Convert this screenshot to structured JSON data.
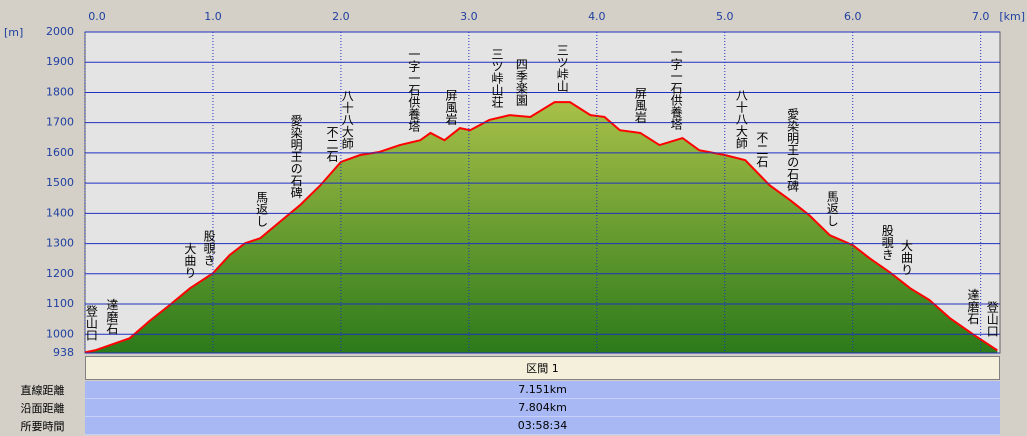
{
  "chart_data": {
    "type": "area",
    "x_label": "[km]",
    "y_label": "[m]",
    "x": [
      0,
      0.08,
      0.35,
      0.51,
      0.66,
      0.82,
      1.0,
      1.13,
      1.25,
      1.37,
      1.52,
      1.68,
      1.84,
      2.0,
      2.15,
      2.3,
      2.46,
      2.62,
      2.7,
      2.81,
      2.93,
      3.01,
      3.16,
      3.32,
      3.48,
      3.67,
      3.79,
      3.95,
      4.06,
      4.18,
      4.34,
      4.49,
      4.67,
      4.8,
      5.0,
      5.16,
      5.35,
      5.51,
      5.66,
      5.82,
      6.0,
      6.13,
      6.29,
      6.45,
      6.6,
      6.76,
      6.95,
      7.13
    ],
    "series": [
      {
        "color": "#ff0000",
        "values": [
          940,
          947,
          987,
          1046,
          1096,
          1152,
          1202,
          1262,
          1301,
          1318,
          1371,
          1427,
          1493,
          1570,
          1593,
          1603,
          1626,
          1642,
          1666,
          1642,
          1682,
          1675,
          1709,
          1725,
          1719,
          1768,
          1768,
          1725,
          1719,
          1675,
          1666,
          1626,
          1649,
          1609,
          1593,
          1576,
          1493,
          1444,
          1394,
          1328,
          1295,
          1252,
          1205,
          1152,
          1113,
          1053,
          997,
          947
        ]
      }
    ],
    "xlim": [
      0,
      7.151
    ],
    "ylim": [
      938,
      2000
    ],
    "xticks": [
      {
        "value": 0,
        "label": "0.0"
      },
      {
        "value": 1,
        "label": "1.0"
      },
      {
        "value": 2,
        "label": "2.0"
      },
      {
        "value": 3,
        "label": "3.0"
      },
      {
        "value": 4,
        "label": "4.0"
      },
      {
        "value": 5,
        "label": "5.0"
      },
      {
        "value": 6,
        "label": "6.0"
      },
      {
        "value": 7,
        "label": "7.0"
      }
    ],
    "yticks": [
      938,
      1000,
      1100,
      1200,
      1300,
      1400,
      1500,
      1600,
      1700,
      1800,
      1900,
      2000
    ],
    "grid": true,
    "annotations": [
      {
        "text": "登山口",
        "x": 0.05
      },
      {
        "text": "達磨石",
        "x": 0.21
      },
      {
        "text": "大曲り",
        "x": 0.82
      },
      {
        "text": "股覗き",
        "x": 0.97
      },
      {
        "text": "馬返し",
        "x": 1.38
      },
      {
        "text": "愛染明王の石碑",
        "x": 1.65
      },
      {
        "text": "不二石",
        "x": 1.93
      },
      {
        "text": "八十八大師",
        "x": 2.05
      },
      {
        "text": "一字一石供養塔",
        "x": 2.57
      },
      {
        "text": "屏風岩",
        "x": 2.86
      },
      {
        "text": "三ツ峠山荘",
        "x": 3.22
      },
      {
        "text": "四季楽園",
        "x": 3.41
      },
      {
        "text": "三ツ峠山",
        "x": 3.73
      },
      {
        "text": "屏風岩",
        "x": 4.34
      },
      {
        "text": "一字一石供養塔",
        "x": 4.62
      },
      {
        "text": "八十八大師",
        "x": 5.13
      },
      {
        "text": "不二石",
        "x": 5.29
      },
      {
        "text": "愛染明王の石碑",
        "x": 5.53
      },
      {
        "text": "馬返し",
        "x": 5.84
      },
      {
        "text": "股覗き",
        "x": 6.27
      },
      {
        "text": "大曲り",
        "x": 6.42
      },
      {
        "text": "達磨石",
        "x": 6.94
      },
      {
        "text": "登山口",
        "x": 7.09
      }
    ]
  },
  "table": {
    "header": "区間 1",
    "rows": [
      [
        "直線距離",
        "7.151km"
      ],
      [
        "沿面距離",
        "7.804km"
      ],
      [
        "所要時間",
        "03:58:34"
      ]
    ]
  }
}
